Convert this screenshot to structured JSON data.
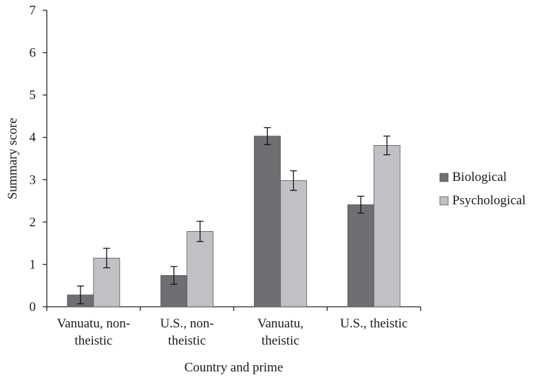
{
  "chart_data": {
    "type": "bar",
    "categories": [
      [
        "Vanuatu, non-",
        "theistic"
      ],
      [
        "U.S., non-",
        "theistic"
      ],
      [
        "Vanuatu,",
        "theistic"
      ],
      [
        "U.S., theistic"
      ]
    ],
    "series": [
      {
        "name": "Biological",
        "color": "#6e6f73",
        "values": [
          0.28,
          0.74,
          4.03,
          2.41
        ],
        "errors": [
          0.21,
          0.21,
          0.2,
          0.2
        ]
      },
      {
        "name": "Psychological",
        "color": "#c0c1c4",
        "values": [
          1.15,
          1.78,
          2.98,
          3.81
        ],
        "errors": [
          0.23,
          0.24,
          0.23,
          0.22
        ]
      }
    ],
    "xlabel": "Country and prime",
    "ylabel": "Summary score",
    "ylim": [
      0,
      7
    ],
    "yticks": [
      "0",
      "1",
      "2",
      "3",
      "4",
      "5",
      "6",
      "7"
    ],
    "grid": false,
    "legend_position": "right"
  }
}
